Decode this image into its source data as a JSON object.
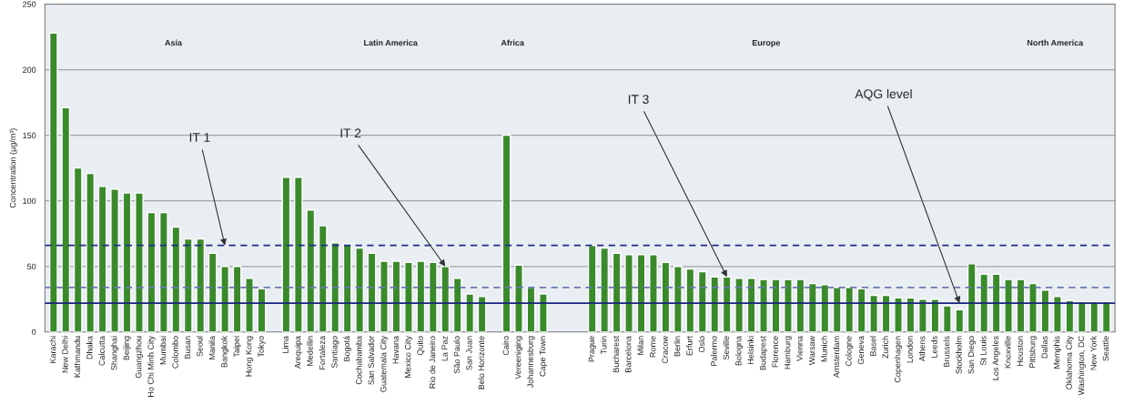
{
  "chart_data": {
    "type": "bar",
    "ylabel": "Concentration (µg/m³)",
    "categories": [
      "Karachi",
      "New Delhi",
      "Kathmandu",
      "Dhaka",
      "Calcutta",
      "Shanghai",
      "Beijing",
      "Guangzhou",
      "Ho Chi Minh City",
      "Mumbai",
      "Colombo",
      "Busan",
      "Seoul",
      "Manila",
      "Bangkok",
      "Taipei",
      "Hong Kong",
      "Tokyo",
      null,
      "Lima",
      "Arequipa",
      "Medellin",
      "Fortaleza",
      "Santiago",
      "Bogotá",
      "Cochabamba",
      "San Salvador",
      "Guatemala City",
      "Havana",
      "Mexico City",
      "Quito",
      "Rio de Janeiro",
      "La Paz",
      "São Paulo",
      "San Juan",
      "Belo Horizonte",
      null,
      "Cairo",
      "Vereeniging",
      "Johannesburg",
      "Cape Town",
      null,
      null,
      null,
      "Prague",
      "Turin",
      "Bucharest",
      "Barcelona",
      "Milan",
      "Rome",
      "Cracow",
      "Berlin",
      "Erfurt",
      "Oslo",
      "Palermo",
      "Seville",
      "Bologna",
      "Helsinki",
      "Budapest",
      "Florence",
      "Hamburg",
      "Vienna",
      "Warsaw",
      "Munich",
      "Amsterdam",
      "Cologne",
      "Geneva",
      "Basel",
      "Zurich",
      "Copenhagen",
      "London",
      "Athens",
      "Leeds",
      "Brussels",
      "Stockholm",
      "San Diego",
      "St Louis",
      "Los Angeles",
      "Knoxville",
      "Houston",
      "Pittsburg",
      "Dallas",
      "Memphis",
      "Oklahoma City",
      "Washington, DC",
      "New York",
      "Seattle"
    ],
    "values": [
      228,
      171,
      125,
      121,
      111,
      109,
      106,
      106,
      91,
      91,
      80,
      71,
      71,
      60,
      50,
      50,
      41,
      33,
      null,
      118,
      118,
      93,
      81,
      68,
      67,
      64,
      60,
      54,
      54,
      53,
      54,
      53,
      50,
      41,
      29,
      27,
      null,
      150,
      51,
      34,
      29,
      null,
      null,
      null,
      66,
      64,
      60,
      59,
      59,
      59,
      53,
      50,
      48,
      46,
      42,
      42,
      41,
      41,
      40,
      40,
      40,
      40,
      37,
      36,
      34,
      34,
      33,
      28,
      28,
      26,
      26,
      25,
      25,
      20,
      17,
      52,
      44,
      44,
      40,
      40,
      37,
      32,
      27,
      24,
      23,
      23,
      23
    ],
    "color": "#3a8a2c",
    "ylim": [
      0,
      250
    ],
    "yticks": [
      0,
      50,
      100,
      150,
      200,
      250
    ],
    "grid": "y",
    "ref_lines": [
      {
        "axis": "y",
        "value": 66,
        "color": "#1f2d86",
        "line_style": "dashed"
      },
      {
        "axis": "y",
        "value": 34,
        "color": "#6a78b0",
        "line_style": "dashed"
      },
      {
        "axis": "y",
        "value": 22,
        "color": "#1a237e",
        "line_style": "solid"
      }
    ],
    "annotations": [
      "Asia",
      "Latin America",
      "Africa",
      "Europe",
      "North America",
      {
        "text": "IT 1",
        "x": "Bangkok",
        "y": 66
      },
      {
        "text": "IT 2",
        "x": "La Paz",
        "y": 50
      },
      {
        "text": "IT 3",
        "x": "Seville",
        "y": 42
      },
      {
        "text": "AQG level",
        "x": "Stockholm",
        "y": 22
      }
    ]
  }
}
